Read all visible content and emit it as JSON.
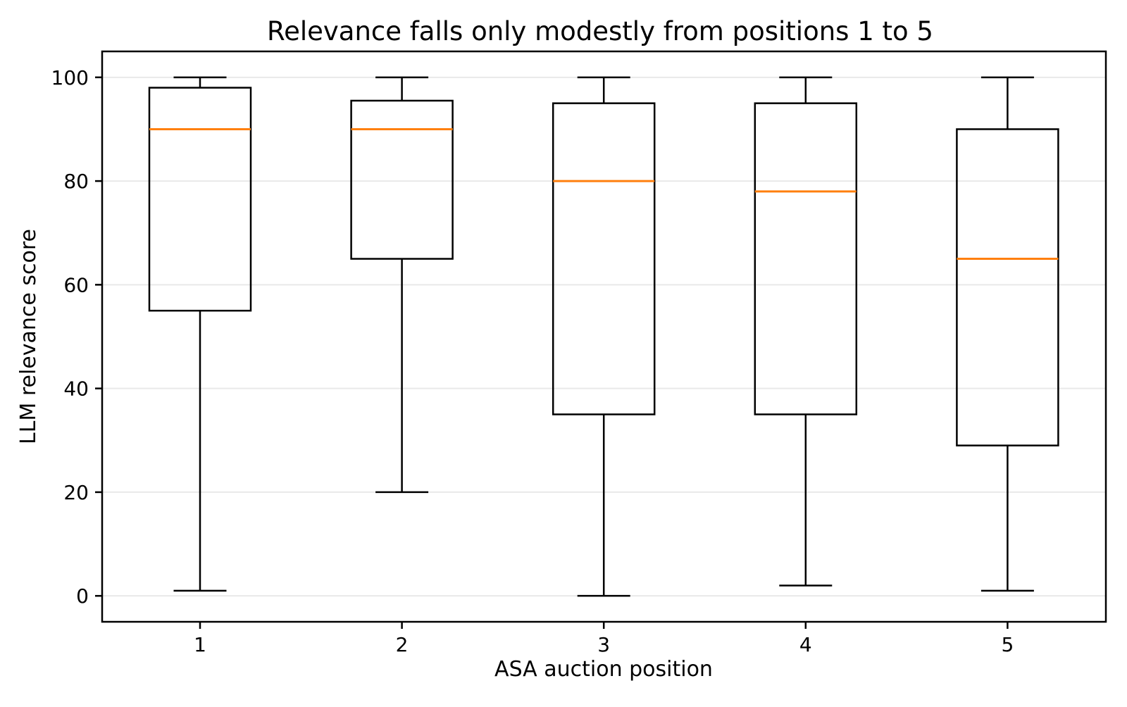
{
  "colors": {
    "line": "#000000",
    "median": "#ff7f0e",
    "grid": "#e9e9e9",
    "background": "#ffffff",
    "text": "#000000"
  },
  "chart_data": {
    "type": "boxplot",
    "title": "Relevance falls only modestly from positions 1 to 5",
    "xlabel": "ASA auction position",
    "ylabel": "LLM relevance score",
    "categories": [
      "1",
      "2",
      "3",
      "4",
      "5"
    ],
    "yticks": [
      0,
      20,
      40,
      60,
      80,
      100
    ],
    "ylim": [
      -5,
      105
    ],
    "grid": "horizontal-only",
    "legend": "none",
    "series": [
      {
        "position": "1",
        "whisker_low": 1,
        "q1": 55,
        "median": 90,
        "q3": 98,
        "whisker_high": 100
      },
      {
        "position": "2",
        "whisker_low": 20,
        "q1": 65,
        "median": 90,
        "q3": 95.5,
        "whisker_high": 100
      },
      {
        "position": "3",
        "whisker_low": 0,
        "q1": 35,
        "median": 80,
        "q3": 95,
        "whisker_high": 100
      },
      {
        "position": "4",
        "whisker_low": 2,
        "q1": 35,
        "median": 78,
        "q3": 95,
        "whisker_high": 100
      },
      {
        "position": "5",
        "whisker_low": 1,
        "q1": 29,
        "median": 65,
        "q3": 90,
        "whisker_high": 100
      }
    ]
  }
}
